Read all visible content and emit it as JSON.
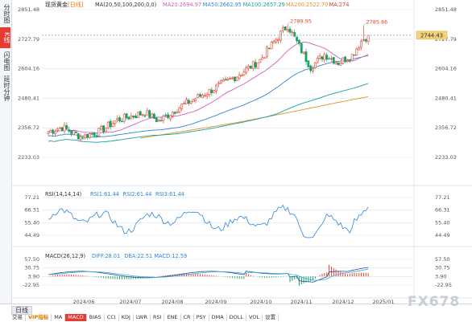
{
  "sidebar": {
    "tabs": [
      {
        "label": "分时图",
        "active": false
      },
      {
        "label": "K线",
        "active": true
      },
      {
        "label": "闪电图",
        "active": false
      },
      {
        "label": "延时分钟",
        "active": false
      }
    ]
  },
  "header": {
    "symbol": "现货黄金",
    "period": "日线",
    "ma_label": "MA(20,50,100,200,0,0)",
    "ma_values": [
      {
        "text": "MA20:2694.97",
        "color": "#d15fb6"
      },
      {
        "text": "MA50:2662.95",
        "color": "#2f86d8"
      },
      {
        "text": "MA100:2657.29",
        "color": "#17a3a0"
      },
      {
        "text": "MA200:2522.70",
        "color": "#e3922b"
      },
      {
        "text": "MA:274",
        "color": "#e03c31"
      }
    ]
  },
  "main_axis_labels": [
    "2851.48",
    "2727.79",
    "2604.16",
    "2480.41",
    "2356.72",
    "2233.03"
  ],
  "price_tag": "2744.43",
  "annotations": [
    "2789.95",
    "2785.86"
  ],
  "rsi": {
    "header": "RSI(14,14,14)",
    "values": [
      {
        "text": "RSI1:61.44",
        "color": "#2f86d8"
      },
      {
        "text": "RSI2:61.44",
        "color": "#2f86d8"
      },
      {
        "text": "RSI3:61.44",
        "color": "#2f86d8"
      }
    ],
    "axis_labels": [
      "77.21",
      "66.31",
      "55.40",
      "44.49"
    ]
  },
  "macd": {
    "header": "MACD(26,12,9)",
    "values": [
      {
        "text": "DIFF:28.01",
        "color": "#2f86d8"
      },
      {
        "text": "DEA:22.51",
        "color": "#2f86d8"
      },
      {
        "text": "MACD:12.59",
        "color": "#2f86d8"
      }
    ],
    "axis_labels": [
      "57.50",
      "30.75",
      "3.90",
      "-22.95"
    ]
  },
  "x_labels": [
    "2024/06",
    "2024/07",
    "2024/08",
    "2024/09",
    "2024/10",
    "2024/11",
    "2024/12",
    "2025/01"
  ],
  "bottom": {
    "period_button": "日线",
    "indicators": [
      {
        "label": "交易",
        "style": "normal"
      },
      {
        "label": "VIP指标",
        "style": "orange"
      },
      {
        "label": "MA",
        "style": "normal"
      },
      {
        "label": "MACD",
        "style": "active"
      },
      {
        "label": "BIAS",
        "style": "normal"
      },
      {
        "label": "CCI",
        "style": "normal"
      },
      {
        "label": "KDJ",
        "style": "normal"
      },
      {
        "label": "LWR",
        "style": "normal"
      },
      {
        "label": "RSI",
        "style": "normal"
      },
      {
        "label": "ENE",
        "style": "normal"
      },
      {
        "label": "CR",
        "style": "normal"
      },
      {
        "label": "PSY",
        "style": "normal"
      },
      {
        "label": "DMA",
        "style": "normal"
      },
      {
        "label": "DOLL",
        "style": "normal"
      },
      {
        "label": "VOL",
        "style": "normal"
      },
      {
        "label": "设置",
        "style": "normal"
      }
    ]
  },
  "watermark": "FX678",
  "colors": {
    "up": "#e8412f",
    "down": "#1aa062",
    "grid": "#dfe3ea",
    "axis_text": "#555555",
    "ma20": "#d15fb6",
    "ma50": "#2f86d8",
    "ma100": "#17a3a0",
    "ma200": "#e3922b"
  }
}
